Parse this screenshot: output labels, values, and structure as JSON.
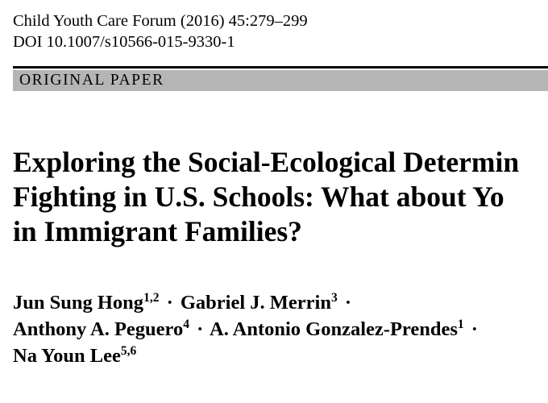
{
  "header": {
    "citation": "Child Youth Care Forum (2016) 45:279–299",
    "doi": "DOI 10.1007/s10566-015-9330-1"
  },
  "banner": {
    "label": "ORIGINAL PAPER"
  },
  "title": {
    "lines": [
      "Exploring the Social-Ecological Determin",
      "Fighting in U.S. Schools: What about Yo",
      "in Immigrant Families?"
    ]
  },
  "authors": [
    {
      "name": "Jun Sung Hong",
      "affiliation": "1,2"
    },
    {
      "name": "Gabriel J. Merrin",
      "affiliation": "3"
    },
    {
      "name": "Anthony A. Peguero",
      "affiliation": "4"
    },
    {
      "name": "A. Antonio Gonzalez-Prendes",
      "affiliation": "1"
    },
    {
      "name": "Na Youn Lee",
      "affiliation": "5,6"
    }
  ],
  "separator": "·"
}
